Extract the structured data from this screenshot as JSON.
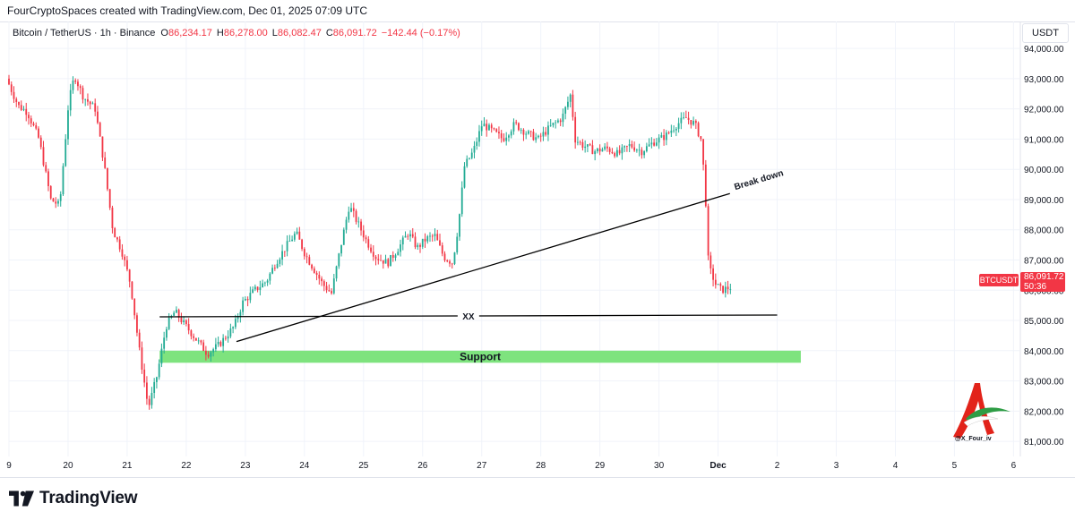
{
  "header": {
    "credit": "FourCryptoSpaces created with TradingView.com, Dec 01, 2025 07:09 UTC"
  },
  "legend": {
    "symbol": "Bitcoin / TetherUS · 1h · Binance",
    "open_label": "O",
    "open": "86,234.17",
    "high_label": "H",
    "high": "86,278.00",
    "low_label": "L",
    "low": "86,082.47",
    "close_label": "C",
    "close": "86,091.72",
    "change": "−142.44 (−0.17%)"
  },
  "price_scale": {
    "currency": "USDT",
    "last_symbol": "BTCUSDT",
    "last_price": "86,091.72",
    "countdown": "50:36"
  },
  "brand": {
    "logo_text": "TradingView",
    "watermark_handle": "@X_Four_iv"
  },
  "colors": {
    "up": "#22ab94",
    "down": "#f23645",
    "support_zone": "#7ee37e",
    "grid": "#f0f3fa",
    "line": "#000000"
  },
  "chart_data": {
    "type": "candlestick",
    "timeframe": "1h",
    "x_ticks": [
      "9",
      "20",
      "21",
      "22",
      "23",
      "24",
      "25",
      "26",
      "27",
      "28",
      "29",
      "30",
      "Dec",
      "2",
      "3",
      "4",
      "5",
      "6"
    ],
    "y_ticks": [
      "81,000.00",
      "82,000.00",
      "83,000.00",
      "84,000.00",
      "85,000.00",
      "86,000.00",
      "87,000.00",
      "88,000.00",
      "89,000.00",
      "90,000.00",
      "91,000.00",
      "92,000.00",
      "93,000.00",
      "94,000.00"
    ],
    "ylim": [
      80500,
      94300
    ],
    "xlim_days": [
      19,
      36.1
    ],
    "price_path": [
      [
        19.0,
        93000
      ],
      [
        19.2,
        92100
      ],
      [
        19.35,
        91900
      ],
      [
        19.55,
        91000
      ],
      [
        19.75,
        89000
      ],
      [
        19.9,
        88800
      ],
      [
        20.05,
        92200
      ],
      [
        20.15,
        93100
      ],
      [
        20.3,
        92400
      ],
      [
        20.5,
        92000
      ],
      [
        20.65,
        90200
      ],
      [
        20.8,
        88000
      ],
      [
        20.95,
        87300
      ],
      [
        21.1,
        86200
      ],
      [
        21.25,
        84000
      ],
      [
        21.4,
        82100
      ],
      [
        21.55,
        83200
      ],
      [
        21.7,
        84800
      ],
      [
        21.85,
        85300
      ],
      [
        22.0,
        84900
      ],
      [
        22.2,
        84400
      ],
      [
        22.4,
        83900
      ],
      [
        22.6,
        84200
      ],
      [
        22.85,
        84800
      ],
      [
        23.0,
        85600
      ],
      [
        23.2,
        86000
      ],
      [
        23.4,
        86300
      ],
      [
        23.55,
        86900
      ],
      [
        23.75,
        87500
      ],
      [
        23.9,
        87900
      ],
      [
        24.05,
        87200
      ],
      [
        24.2,
        86700
      ],
      [
        24.35,
        86200
      ],
      [
        24.5,
        85900
      ],
      [
        24.65,
        87400
      ],
      [
        24.8,
        88800
      ],
      [
        24.95,
        88200
      ],
      [
        25.1,
        87600
      ],
      [
        25.25,
        87100
      ],
      [
        25.45,
        86900
      ],
      [
        25.6,
        87300
      ],
      [
        25.8,
        87900
      ],
      [
        25.95,
        87400
      ],
      [
        26.1,
        87700
      ],
      [
        26.25,
        87800
      ],
      [
        26.4,
        87100
      ],
      [
        26.55,
        86900
      ],
      [
        26.65,
        88200
      ],
      [
        26.75,
        90100
      ],
      [
        26.9,
        90600
      ],
      [
        27.05,
        91500
      ],
      [
        27.2,
        91300
      ],
      [
        27.4,
        91000
      ],
      [
        27.6,
        91500
      ],
      [
        27.8,
        91200
      ],
      [
        28.0,
        91000
      ],
      [
        28.2,
        91400
      ],
      [
        28.4,
        91700
      ],
      [
        28.55,
        92500
      ],
      [
        28.62,
        91000
      ],
      [
        28.75,
        90800
      ],
      [
        28.95,
        90600
      ],
      [
        29.15,
        90700
      ],
      [
        29.35,
        90500
      ],
      [
        29.55,
        90800
      ],
      [
        29.75,
        90600
      ],
      [
        29.95,
        90900
      ],
      [
        30.15,
        91100
      ],
      [
        30.35,
        91500
      ],
      [
        30.5,
        91700
      ],
      [
        30.65,
        91500
      ],
      [
        30.75,
        91000
      ],
      [
        30.82,
        89500
      ],
      [
        30.88,
        86800
      ],
      [
        31.0,
        86200
      ],
      [
        31.1,
        86000
      ],
      [
        31.25,
        86100
      ]
    ],
    "annotations": [
      {
        "type": "trendline",
        "label": "Break down",
        "from": [
          22.85,
          84300
        ],
        "to": [
          31.2,
          89200
        ]
      },
      {
        "type": "horizontal_line",
        "label": "XX",
        "from": [
          21.55,
          85120
        ],
        "to": [
          32.0,
          85180
        ]
      },
      {
        "type": "zone",
        "label": "Support",
        "x_range": [
          21.55,
          32.4
        ],
        "y_range": [
          83600,
          84000
        ]
      }
    ]
  }
}
